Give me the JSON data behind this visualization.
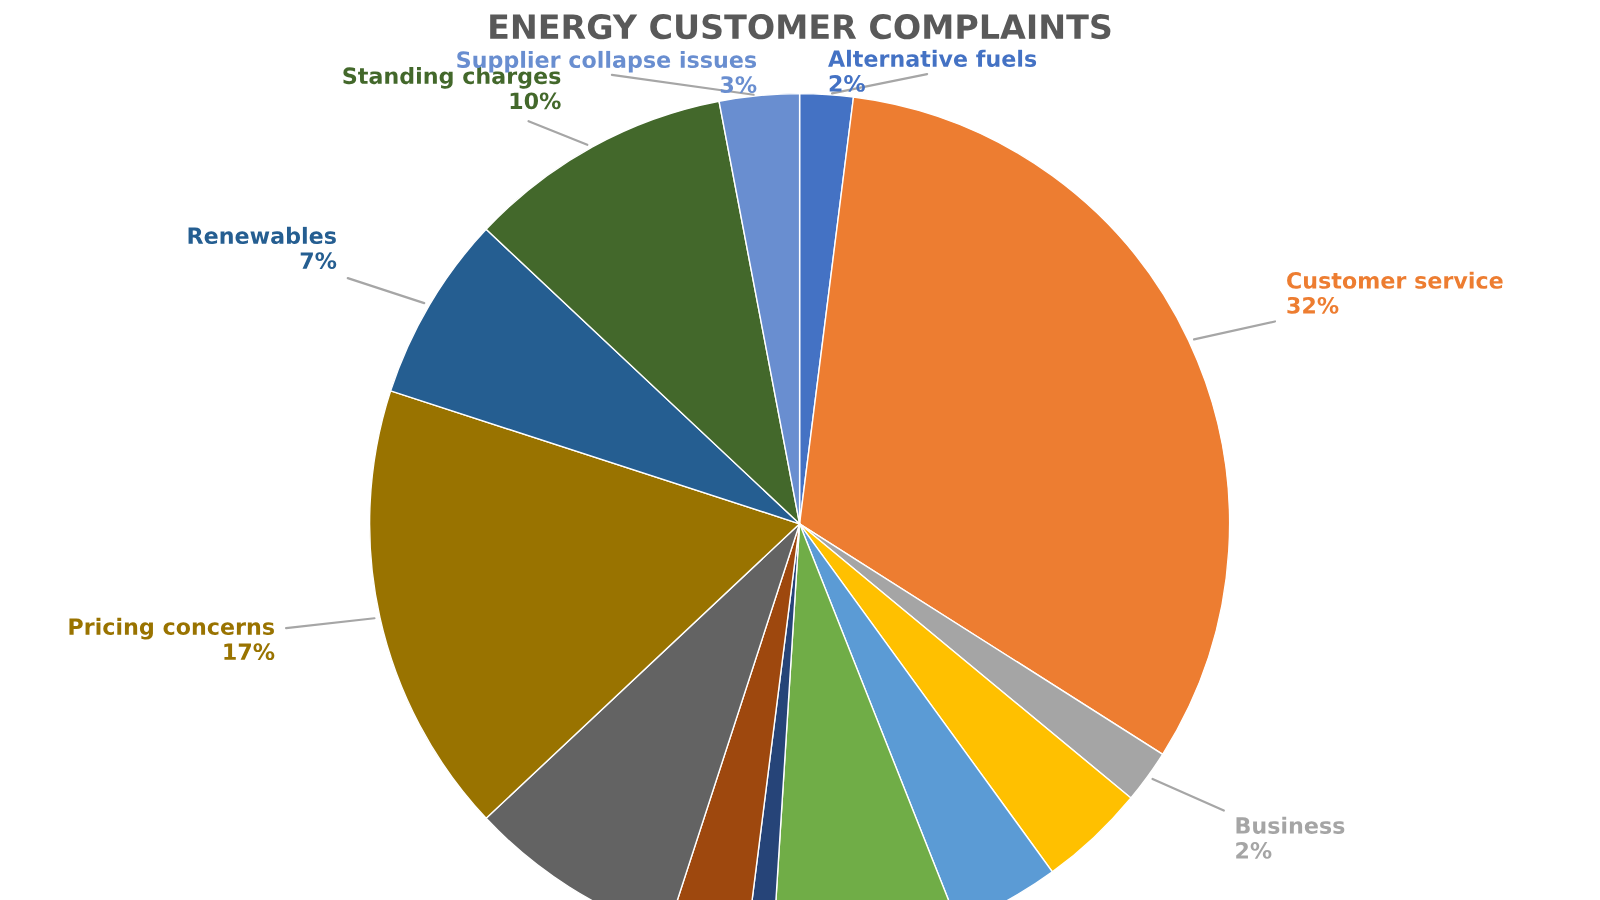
{
  "chart_data": {
    "type": "pie",
    "title": "ENERGY CUSTOMER COMPLAINTS",
    "categories": [
      "Alternative fuels",
      "Customer service",
      "Business",
      null,
      null,
      null,
      null,
      null,
      null,
      "Pricing concerns",
      "Renewables",
      "Standing charges",
      "Supplier collapse issues"
    ],
    "values": [
      2,
      32,
      2,
      4,
      4,
      7,
      1,
      3,
      8,
      17,
      7,
      10,
      3
    ],
    "value_labels": [
      "2%",
      "32%",
      "2%",
      null,
      null,
      null,
      null,
      null,
      null,
      "17%",
      "7%",
      "10%",
      "3%"
    ],
    "colors": [
      "#4472c4",
      "#ed7d31",
      "#a5a5a5",
      "#ffc000",
      "#5b9bd5",
      "#70ad47",
      "#264478",
      "#9e480e",
      "#636363",
      "#997300",
      "#255e91",
      "#43682b",
      "#698ed0"
    ]
  }
}
